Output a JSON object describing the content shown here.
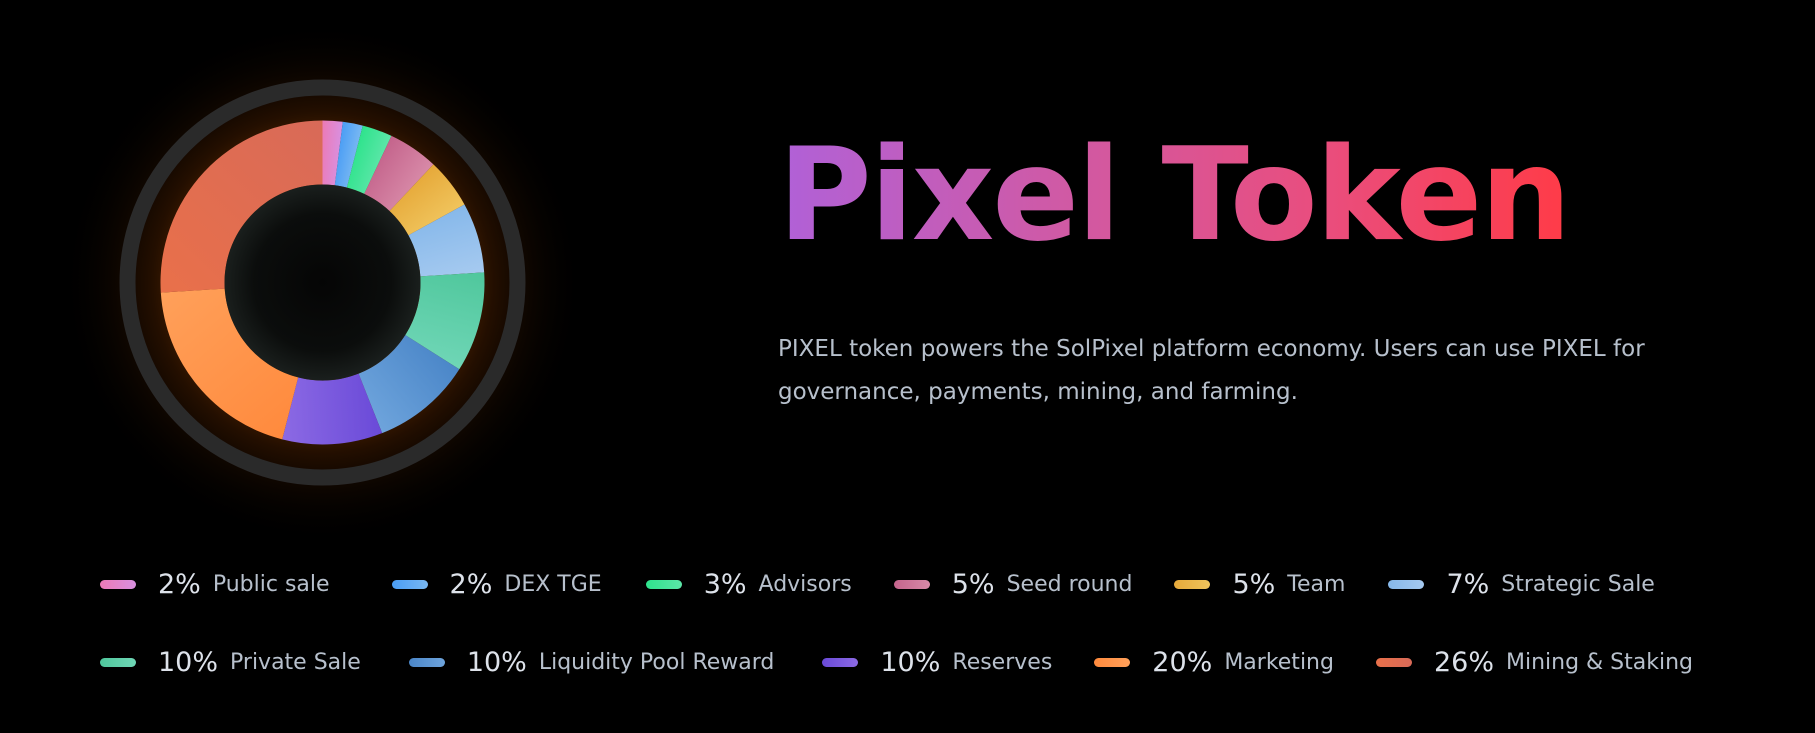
{
  "header": {
    "title": "Pixel Token",
    "description": "PIXEL token powers the SolPixel platform economy. Users can use PIXEL for governance, payments, mining, and farming."
  },
  "colors": {
    "title_gradient": [
      "#b061d8",
      "#cf5aa6",
      "#ea4d7c",
      "#ff3b47"
    ],
    "background": "#000000",
    "ring": "#2a2a2a",
    "glow": "#ff7a1a"
  },
  "chart_data": {
    "type": "pie",
    "donut": true,
    "labels": [
      "Public sale",
      "DEX TGE",
      "Advisors",
      "Seed round",
      "Team",
      "Strategic Sale",
      "Private Sale",
      "Liquidity Pool Reward",
      "Reserves",
      "Marketing",
      "Mining & Staking"
    ],
    "values": [
      2,
      2,
      3,
      5,
      5,
      7,
      10,
      10,
      10,
      20,
      26
    ],
    "percent_labels": [
      "2%",
      "2%",
      "3%",
      "5%",
      "5%",
      "7%",
      "10%",
      "10%",
      "10%",
      "20%",
      "26%"
    ],
    "colors": [
      [
        "#ec7ab6",
        "#d890e0"
      ],
      [
        "#4a9df5",
        "#79b8f2"
      ],
      [
        "#2ee38c",
        "#5ce6a8"
      ],
      [
        "#c4648c",
        "#d88aa8"
      ],
      [
        "#e6a93a",
        "#f0c45c"
      ],
      [
        "#86b8ea",
        "#a6caf0"
      ],
      [
        "#4fc79c",
        "#6fd6b6"
      ],
      [
        "#4a86c8",
        "#6ea4dc"
      ],
      [
        "#6a4ad8",
        "#8c6ae4"
      ],
      [
        "#ff8a3d",
        "#ffa05a"
      ],
      [
        "#e9704a",
        "#d86a58"
      ]
    ],
    "legend": "bottom",
    "legend_rows": [
      [
        0,
        1,
        2,
        3,
        4,
        5
      ],
      [
        6,
        7,
        8,
        9,
        10
      ]
    ]
  }
}
